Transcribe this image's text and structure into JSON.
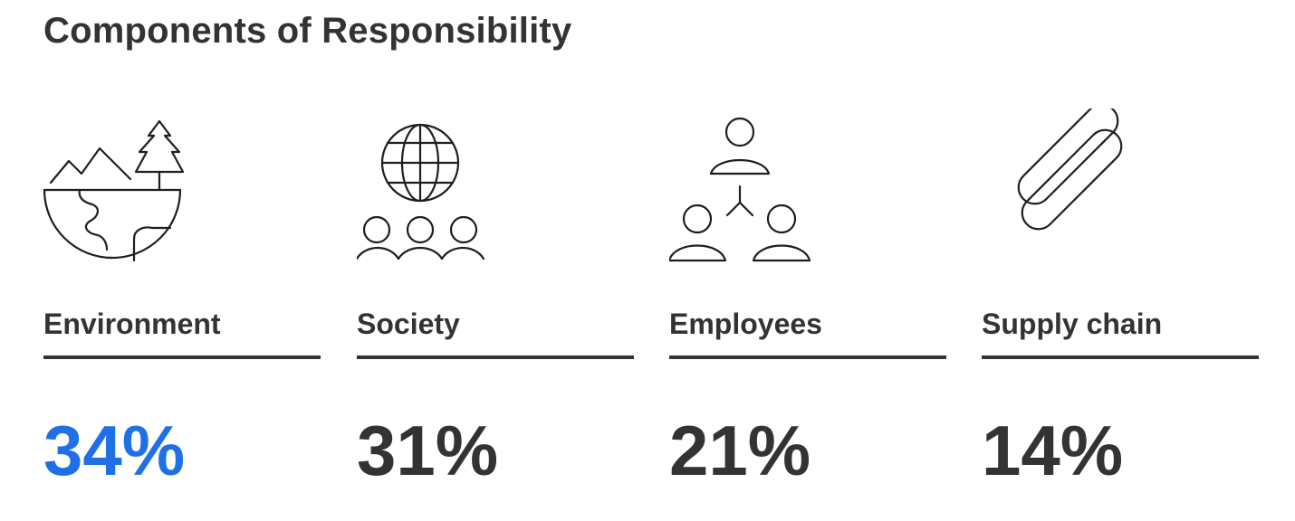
{
  "title": "Components of Responsibility",
  "colors": {
    "accent": "#1f6fe8",
    "text": "#333333"
  },
  "chart_data": {
    "type": "table",
    "title": "Components of Responsibility",
    "categories": [
      "Environment",
      "Society",
      "Employees",
      "Supply chain"
    ],
    "values": [
      34,
      31,
      21,
      14
    ],
    "value_labels": [
      "34%",
      "31%",
      "21%",
      "14%"
    ],
    "icons": [
      "landscape-icon",
      "globe-community-icon",
      "team-hierarchy-icon",
      "chain-link-icon"
    ],
    "highlight_index": 0
  }
}
